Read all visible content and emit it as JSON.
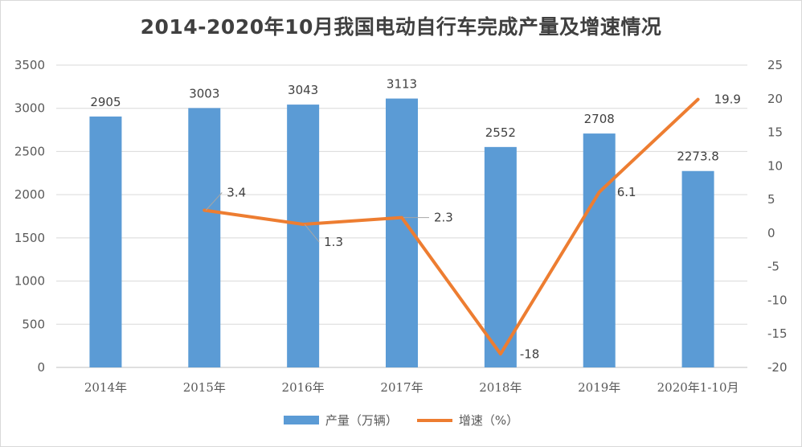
{
  "chart_data": {
    "type": "bar",
    "title": "2014-2020年10月我国电动自行车完成产量及增速情况",
    "categories": [
      "2014年",
      "2015年",
      "2016年",
      "2017年",
      "2018年",
      "2019年",
      "2020年1-10月"
    ],
    "series": [
      {
        "name": "产量（万辆）",
        "type": "bar",
        "axis": "left",
        "values": [
          2905,
          3003,
          3043,
          3113,
          2552,
          2708,
          2273.8
        ],
        "labels": [
          "2905",
          "3003",
          "3043",
          "3113",
          "2552",
          "2708",
          "2273.8"
        ],
        "color": "#5b9bd5"
      },
      {
        "name": "增速（%）",
        "type": "line",
        "axis": "right",
        "values": [
          null,
          3.4,
          1.3,
          2.3,
          -18,
          6.1,
          19.9
        ],
        "labels": [
          "",
          "3.4",
          "1.3",
          "2.3",
          "-18",
          "6.1",
          "19.9"
        ],
        "color": "#ed7d31"
      }
    ],
    "y_left": {
      "min": 0,
      "max": 3500,
      "ticks": [
        "0",
        "500",
        "1000",
        "1500",
        "2000",
        "2500",
        "3000",
        "3500"
      ]
    },
    "y_right": {
      "min": -20,
      "max": 25,
      "ticks": [
        "-20",
        "-15",
        "-10",
        "-5",
        "0",
        "5",
        "10",
        "15",
        "20",
        "25"
      ]
    },
    "grid": true,
    "legend_position": "bottom"
  }
}
